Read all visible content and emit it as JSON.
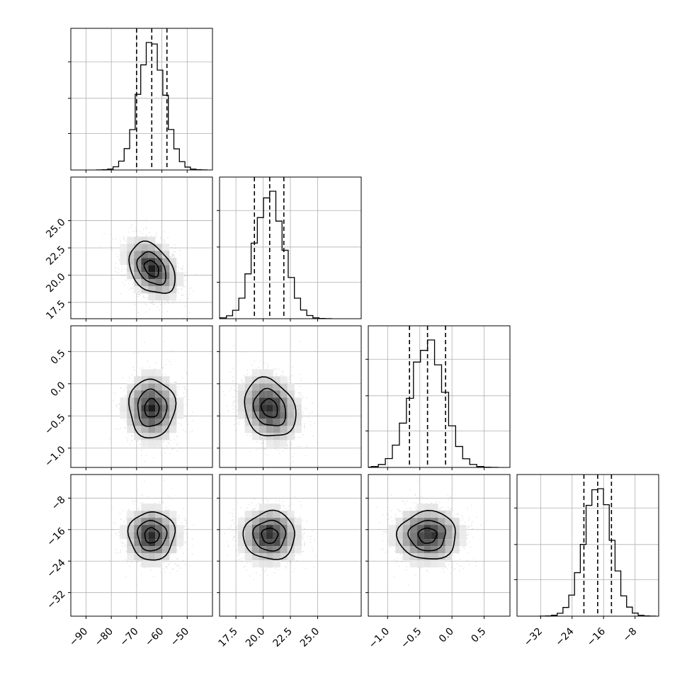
{
  "chart_data": {
    "type": "corner",
    "title": "",
    "parameters": [
      {
        "id": "p0",
        "xlim": [
          -96,
          -40
        ],
        "ticks": [
          -90,
          -80,
          -70,
          -60,
          -50
        ],
        "tick_labels": [
          "−90",
          "−80",
          "−70",
          "−60",
          "−50"
        ],
        "label": "",
        "mean": -64,
        "sd": 5.2
      },
      {
        "id": "p1",
        "xlim": [
          16.0,
          29.0
        ],
        "ticks": [
          17.5,
          20.0,
          22.5,
          25.0
        ],
        "tick_labels": [
          "17.5",
          "20.0",
          "22.5",
          "25.0"
        ],
        "label": "",
        "mean": 20.6,
        "sd": 1.35
      },
      {
        "id": "p2",
        "xlim": [
          -1.3,
          0.9
        ],
        "ticks": [
          -1.0,
          -0.5,
          0.0,
          0.5
        ],
        "tick_labels": [
          "−1.0",
          "−0.5",
          "0.0",
          "0.5"
        ],
        "label": "",
        "mean": -0.38,
        "sd": 0.26
      },
      {
        "id": "p3",
        "xlim": [
          -38,
          -2
        ],
        "ticks": [
          -32,
          -24,
          -16,
          -8
        ],
        "tick_labels": [
          "−32",
          "−24",
          "−16",
          "−8"
        ],
        "label": "",
        "mean": -17.5,
        "sd": 3.5
      }
    ],
    "correlations": {
      "0-1": -0.35,
      "0-2": 0.0,
      "0-3": 0.0,
      "1-2": -0.2,
      "1-3": 0.0,
      "2-3": 0.0
    },
    "marginals": [
      {
        "param": 0,
        "quantiles": [
          -70.0,
          -64.0,
          -58.0
        ],
        "bins": 20,
        "max_density": 1.0
      },
      {
        "param": 1,
        "quantiles": [
          19.2,
          20.6,
          21.9
        ],
        "bins": 20,
        "max_density": 1.0
      },
      {
        "param": 2,
        "quantiles": [
          -0.66,
          -0.38,
          -0.1
        ],
        "bins": 20,
        "max_density": 1.0
      },
      {
        "param": 3,
        "quantiles": [
          -21.0,
          -17.5,
          -14.0
        ],
        "bins": 20,
        "max_density": 1.0
      }
    ],
    "grid": true,
    "legend": "none"
  }
}
